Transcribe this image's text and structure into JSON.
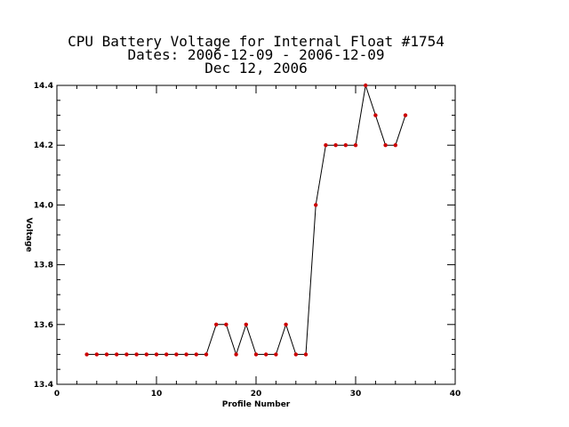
{
  "chart_data": {
    "type": "line",
    "title_lines": [
      "CPU Battery Voltage for Internal Float #1754",
      "Dates:  2006-12-09 -  2006-12-09",
      "Dec 12, 2006"
    ],
    "xlabel": "Profile Number",
    "ylabel": "Voltage",
    "xlim": [
      0,
      40
    ],
    "ylim": [
      13.4,
      14.4
    ],
    "x_ticks": [
      0,
      10,
      20,
      30,
      40
    ],
    "x_tick_labels": [
      "0",
      "10",
      "20",
      "30",
      "40"
    ],
    "y_ticks": [
      13.4,
      13.6,
      13.8,
      14.0,
      14.2,
      14.4
    ],
    "y_tick_labels": [
      "13.4",
      "13.6",
      "13.8",
      "14.0",
      "14.2",
      "14.4"
    ],
    "grid": false,
    "line_color": "#000000",
    "marker_color": "#cc0000",
    "x": [
      3,
      4,
      5,
      6,
      7,
      8,
      9,
      10,
      11,
      12,
      13,
      14,
      15,
      16,
      17,
      18,
      19,
      20,
      21,
      22,
      23,
      24,
      25,
      26,
      27,
      28,
      29,
      30,
      31,
      32,
      33,
      34,
      35
    ],
    "y": [
      13.5,
      13.5,
      13.5,
      13.5,
      13.5,
      13.5,
      13.5,
      13.5,
      13.5,
      13.5,
      13.5,
      13.5,
      13.5,
      13.6,
      13.6,
      13.5,
      13.6,
      13.5,
      13.5,
      13.5,
      13.6,
      13.5,
      13.5,
      14.0,
      14.2,
      14.2,
      14.2,
      14.2,
      14.4,
      14.3,
      14.2,
      14.2,
      14.3
    ]
  }
}
